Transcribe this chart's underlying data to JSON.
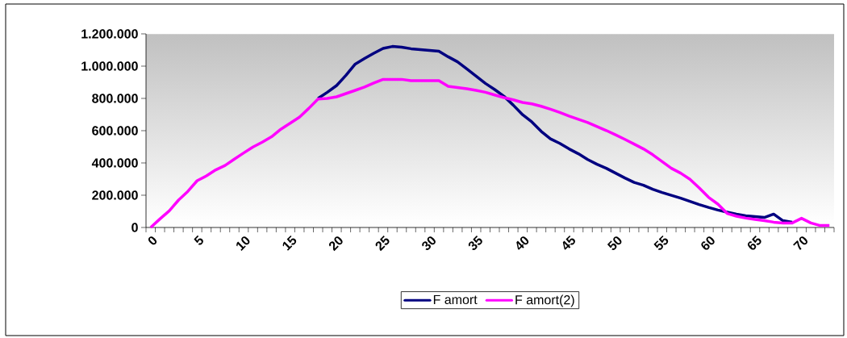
{
  "chart_data": {
    "type": "line",
    "categories": [
      "0",
      null,
      null,
      null,
      null,
      "5",
      null,
      null,
      null,
      null,
      "10",
      null,
      null,
      null,
      null,
      "15",
      null,
      null,
      null,
      null,
      "20",
      null,
      null,
      null,
      null,
      "25",
      null,
      null,
      null,
      null,
      "30",
      null,
      null,
      null,
      null,
      "35",
      null,
      null,
      null,
      null,
      "40",
      null,
      null,
      null,
      null,
      "45",
      null,
      null,
      null,
      null,
      "50",
      null,
      null,
      null,
      null,
      "55",
      null,
      null,
      null,
      null,
      "60",
      null,
      null,
      null,
      null,
      "65",
      null,
      null,
      null,
      null,
      "70",
      null,
      null,
      null
    ],
    "series": [
      {
        "name": "F amort",
        "color": "#000080",
        "values": [
          null,
          null,
          null,
          null,
          null,
          null,
          null,
          null,
          null,
          null,
          null,
          null,
          null,
          null,
          null,
          null,
          null,
          null,
          800000,
          838000,
          880000,
          943000,
          1013000,
          1047000,
          1080000,
          1110000,
          1122000,
          1117000,
          1108000,
          1103000,
          1097000,
          1092000,
          1058000,
          1027000,
          983000,
          938000,
          893000,
          855000,
          813000,
          758000,
          699000,
          654000,
          596000,
          549000,
          521000,
          487000,
          457000,
          421000,
          392000,
          367000,
          337000,
          307000,
          279000,
          262000,
          237000,
          217000,
          199000,
          182000,
          162000,
          142000,
          124000,
          108000,
          95000,
          83000,
          73000,
          67000,
          62000,
          83000,
          42000,
          32000,
          null,
          null,
          null,
          null
        ]
      },
      {
        "name": "F amort(2)",
        "color": "#ff00ff",
        "values": [
          0,
          53000,
          103000,
          170000,
          224000,
          290000,
          320000,
          357000,
          384000,
          424000,
          462000,
          499000,
          529000,
          562000,
          609000,
          646000,
          684000,
          738000,
          796000,
          800000,
          810000,
          830000,
          850000,
          871000,
          896000,
          918000,
          918000,
          918000,
          910000,
          910000,
          910000,
          910000,
          875000,
          868000,
          860000,
          850000,
          838000,
          821000,
          805000,
          791000,
          775000,
          766000,
          751000,
          733000,
          713000,
          691000,
          671000,
          651000,
          626000,
          601000,
          574000,
          546000,
          517000,
          487000,
          451000,
          409000,
          367000,
          337000,
          299000,
          245000,
          187000,
          145000,
          87000,
          70000,
          58000,
          50000,
          42000,
          33000,
          28000,
          28000,
          57000,
          28000,
          12000,
          12000
        ]
      }
    ],
    "ylim": [
      0,
      1200000
    ],
    "yticks": [
      0,
      {
        "value": 200000,
        "label": "200.000"
      },
      {
        "value": 400000,
        "label": "400.000"
      },
      {
        "value": 600000,
        "label": "600.000"
      },
      {
        "value": 800000,
        "label": "800.000"
      },
      {
        "value": 1000000,
        "label": "1.000.000"
      },
      {
        "value": 1200000,
        "label": "1.200.000"
      }
    ],
    "legend": "bottom",
    "grid": false,
    "marker": "none",
    "line_style": "solid"
  }
}
